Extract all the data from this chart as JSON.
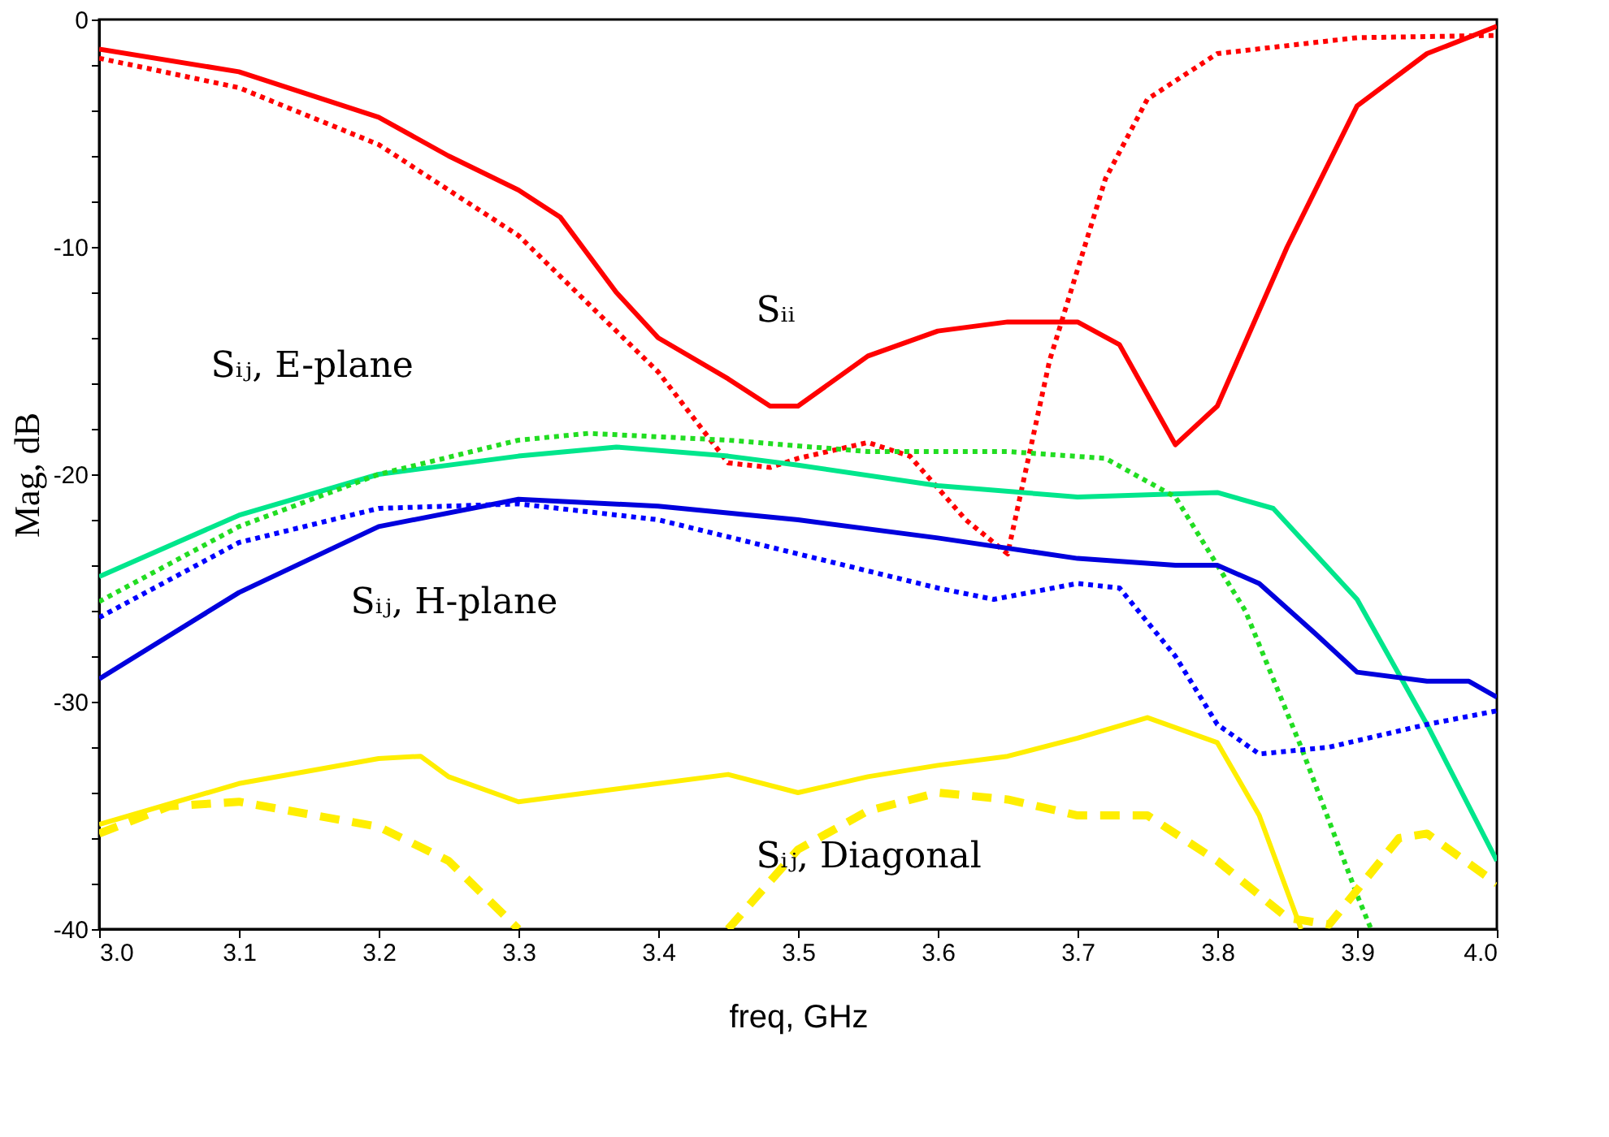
{
  "chart_data": {
    "type": "line",
    "xlabel": "freq, GHz",
    "ylabel": "Mag, dB",
    "xlim": [
      3.0,
      4.0
    ],
    "ylim": [
      -40,
      0
    ],
    "xticks": [
      {
        "value": 3.0,
        "label": "3.0"
      },
      3.1,
      3.2,
      3.3,
      3.4,
      3.5,
      3.6,
      3.7,
      3.8,
      3.9,
      {
        "value": 4.0,
        "label": "4.0"
      }
    ],
    "yticks": [
      -40,
      {
        "value": -38,
        "label": null
      },
      {
        "value": -36,
        "label": null
      },
      {
        "value": -34,
        "label": null
      },
      {
        "value": -32,
        "label": null
      },
      -30,
      {
        "value": -28,
        "label": null
      },
      {
        "value": -26,
        "label": null
      },
      {
        "value": -24,
        "label": null
      },
      {
        "value": -22,
        "label": null
      },
      -20,
      {
        "value": -18,
        "label": null
      },
      {
        "value": -16,
        "label": null
      },
      {
        "value": -14,
        "label": null
      },
      {
        "value": -12,
        "label": null
      },
      -10,
      {
        "value": -8,
        "label": null
      },
      {
        "value": -6,
        "label": null
      },
      {
        "value": -4,
        "label": null
      },
      {
        "value": -2,
        "label": null
      },
      0
    ],
    "series": [
      {
        "color": "#ff0000",
        "line_style": "solid",
        "x": [
          3.0,
          3.1,
          3.2,
          3.25,
          3.3,
          3.33,
          3.37,
          3.4,
          3.45,
          3.48,
          3.5,
          3.55,
          3.6,
          3.65,
          3.7,
          3.73,
          3.77,
          3.8,
          3.85,
          3.9,
          3.95,
          4.0
        ],
        "values": [
          -1.3,
          -2.3,
          -4.3,
          -6,
          -7.5,
          -8.7,
          -12,
          -14,
          -15.8,
          -17,
          -17,
          -14.8,
          -13.7,
          -13.3,
          -13.3,
          -14.3,
          -18.7,
          -17,
          -10,
          -3.8,
          -1.5,
          -0.3
        ]
      },
      {
        "color": "#ff0000",
        "line_style": "dotted",
        "x": [
          3.0,
          3.1,
          3.2,
          3.3,
          3.35,
          3.4,
          3.45,
          3.48,
          3.5,
          3.55,
          3.58,
          3.62,
          3.65,
          3.68,
          3.72,
          3.75,
          3.8,
          3.9,
          4.0
        ],
        "values": [
          -1.7,
          -3,
          -5.5,
          -9.5,
          -12.5,
          -15.5,
          -19.5,
          -19.7,
          -19.3,
          -18.6,
          -19.2,
          -22,
          -23.5,
          -15,
          -7,
          -3.5,
          -1.5,
          -0.8,
          -0.7
        ]
      },
      {
        "color": "#00e68c",
        "line_style": "solid",
        "x": [
          3.0,
          3.1,
          3.2,
          3.3,
          3.37,
          3.45,
          3.5,
          3.6,
          3.7,
          3.8,
          3.84,
          3.9,
          3.95,
          4.0
        ],
        "values": [
          -24.5,
          -21.8,
          -20,
          -19.2,
          -18.8,
          -19.2,
          -19.6,
          -20.5,
          -21,
          -20.8,
          -21.5,
          -25.5,
          -31,
          -37
        ]
      },
      {
        "color": "#22dd22",
        "line_style": "dotted",
        "x": [
          3.0,
          3.1,
          3.2,
          3.3,
          3.35,
          3.45,
          3.55,
          3.65,
          3.72,
          3.77,
          3.82,
          3.86,
          3.9,
          3.91
        ],
        "values": [
          -25.6,
          -22.3,
          -20,
          -18.5,
          -18.2,
          -18.5,
          -19,
          -19,
          -19.3,
          -21,
          -26,
          -32,
          -38.5,
          -40
        ]
      },
      {
        "color": "#0000dd",
        "line_style": "solid",
        "x": [
          3.0,
          3.1,
          3.2,
          3.3,
          3.4,
          3.5,
          3.6,
          3.7,
          3.77,
          3.8,
          3.83,
          3.87,
          3.9,
          3.95,
          3.98,
          4.0
        ],
        "values": [
          -29,
          -25.2,
          -22.3,
          -21.1,
          -21.4,
          -22,
          -22.8,
          -23.7,
          -24,
          -24,
          -24.8,
          -27,
          -28.7,
          -29.1,
          -29.1,
          -29.8
        ]
      },
      {
        "color": "#0000ff",
        "line_style": "dotted",
        "x": [
          3.0,
          3.1,
          3.2,
          3.3,
          3.4,
          3.5,
          3.6,
          3.64,
          3.7,
          3.73,
          3.77,
          3.8,
          3.83,
          3.88,
          3.95,
          4.0
        ],
        "values": [
          -26.3,
          -23,
          -21.5,
          -21.3,
          -22,
          -23.5,
          -25,
          -25.5,
          -24.8,
          -25,
          -28,
          -31,
          -32.3,
          -32,
          -31,
          -30.4
        ]
      },
      {
        "color": "#ffee00",
        "line_style": "solid",
        "x": [
          3.0,
          3.1,
          3.2,
          3.23,
          3.25,
          3.3,
          3.35,
          3.4,
          3.45,
          3.5,
          3.55,
          3.6,
          3.65,
          3.7,
          3.75,
          3.8,
          3.83,
          3.86
        ],
        "values": [
          -35.4,
          -33.6,
          -32.5,
          -32.4,
          -33.3,
          -34.4,
          -34,
          -33.6,
          -33.2,
          -34,
          -33.3,
          -32.8,
          -32.4,
          -31.6,
          -30.7,
          -31.8,
          -35,
          -40
        ]
      },
      {
        "color": "#ffee00",
        "line_style": "dashed",
        "x": [
          3.0,
          3.05,
          3.1,
          3.2,
          3.25,
          3.3,
          3.38,
          3.45,
          3.5,
          3.55,
          3.6,
          3.65,
          3.7,
          3.75,
          3.8,
          3.85,
          3.88,
          3.93,
          3.95,
          4.0
        ],
        "values": [
          -35.8,
          -34.6,
          -34.4,
          -35.5,
          -37,
          -40,
          null,
          -40,
          -36.5,
          -34.8,
          -34,
          -34.3,
          -35,
          -35,
          -37,
          -39.5,
          -39.8,
          -36,
          -35.8,
          -38
        ]
      }
    ],
    "annotations": [
      "Sᵢᵢ",
      "Sᵢⱼ, E-plane",
      "Sᵢⱼ, H-plane",
      "Sᵢⱼ, Diagonal"
    ]
  }
}
